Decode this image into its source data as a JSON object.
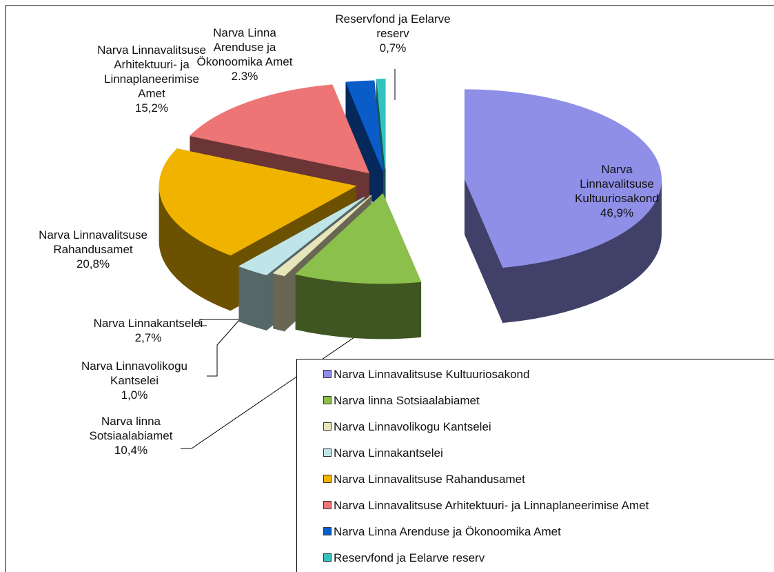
{
  "chart_data": {
    "type": "pie3d",
    "categories": [
      "Narva Linnavalitsuse Kultuuriosakond",
      "Narva linna Sotsiaalabiamet",
      "Narva Linnavolikogu Kantselei",
      "Narva Linnakantselei",
      "Narva Linnavalitsuse Rahandusamet",
      "Narva Linnavalitsuse Arhitektuuri- ja Linnaplaneerimise Amet",
      "Narva Linna Arenduse ja Ökonoomika Amet",
      "Reservfond ja Eelarve reserv"
    ],
    "values": [
      46.9,
      10.4,
      1.0,
      2.7,
      20.8,
      15.2,
      2.3,
      0.7
    ],
    "value_labels": [
      "46,9%",
      "10,4%",
      "1,0%",
      "2,7%",
      "20,8%",
      "15,2%",
      "2.3%",
      "0,7%"
    ],
    "colors": [
      "#8f8fe8",
      "#8cc04c",
      "#e9e5bb",
      "#bfe5e8",
      "#f0b400",
      "#ee7575",
      "#0a5cc8",
      "#33c2c2"
    ],
    "legend": "lower right"
  }
}
